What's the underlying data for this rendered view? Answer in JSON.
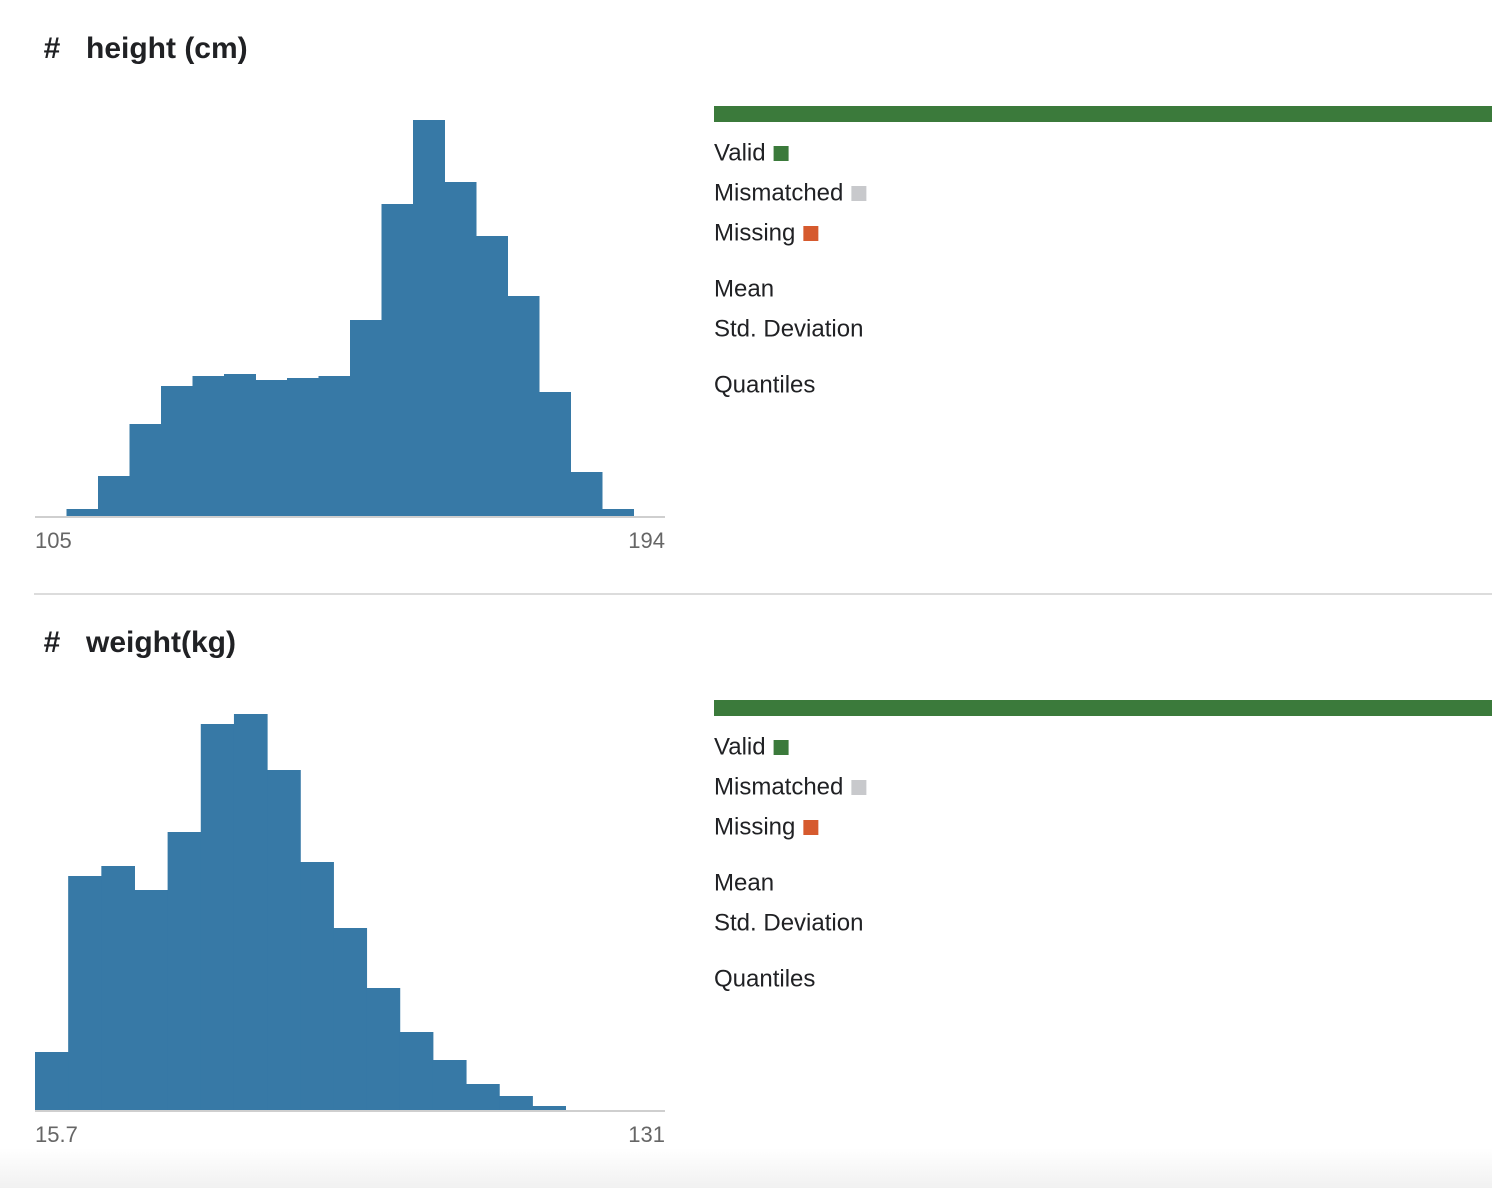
{
  "columns": [
    {
      "icon": "#",
      "name": "height (cm)",
      "labels": {
        "valid": "Valid",
        "mismatched": "Mismatched",
        "missing": "Missing",
        "mean": "Mean",
        "std": "Std. Deviation",
        "quantiles": "Quantiles"
      }
    },
    {
      "icon": "#",
      "name": "weight(kg)",
      "labels": {
        "valid": "Valid",
        "mismatched": "Mismatched",
        "missing": "Missing",
        "mean": "Mean",
        "std": "Std. Deviation",
        "quantiles": "Quantiles"
      }
    }
  ],
  "legend_colors": {
    "valid": "#3b7a3b",
    "mismatched": "#c8c9cc",
    "missing": "#d65a2e"
  },
  "chart_data": [
    {
      "type": "histogram",
      "color": "#3779a6",
      "bins": [
        105,
        109.45,
        113.9,
        118.35,
        122.8,
        127.25,
        131.7,
        136.15,
        140.6,
        145.05,
        149.5,
        153.95,
        158.4,
        162.85,
        167.3,
        171.75,
        176.2,
        180.65,
        185.1,
        189.55,
        194
      ],
      "counts": [
        0,
        7,
        40,
        92,
        130,
        140,
        142,
        136,
        138,
        140,
        196,
        312,
        396,
        334,
        280,
        220,
        124,
        44,
        7,
        0
      ],
      "xlim": [
        105,
        194
      ],
      "xticks": [
        105,
        194
      ],
      "ylim": [
        0,
        400
      ]
    },
    {
      "type": "histogram",
      "color": "#3779a6",
      "bins": [
        15.7,
        21.77,
        27.84,
        33.91,
        39.97,
        46.04,
        52.11,
        58.18,
        64.25,
        70.32,
        76.38,
        82.45,
        88.52,
        94.59,
        100.66,
        106.73,
        112.79,
        118.86,
        124.93,
        131
      ],
      "counts": [
        58,
        234,
        244,
        220,
        278,
        386,
        396,
        340,
        248,
        182,
        122,
        78,
        50,
        26,
        14,
        4,
        0,
        0,
        0
      ],
      "xlim": [
        15.7,
        131
      ],
      "xticks": [
        {
          "value": 15.7,
          "label": "15.7"
        },
        131
      ],
      "ylim": [
        0,
        400
      ]
    }
  ]
}
